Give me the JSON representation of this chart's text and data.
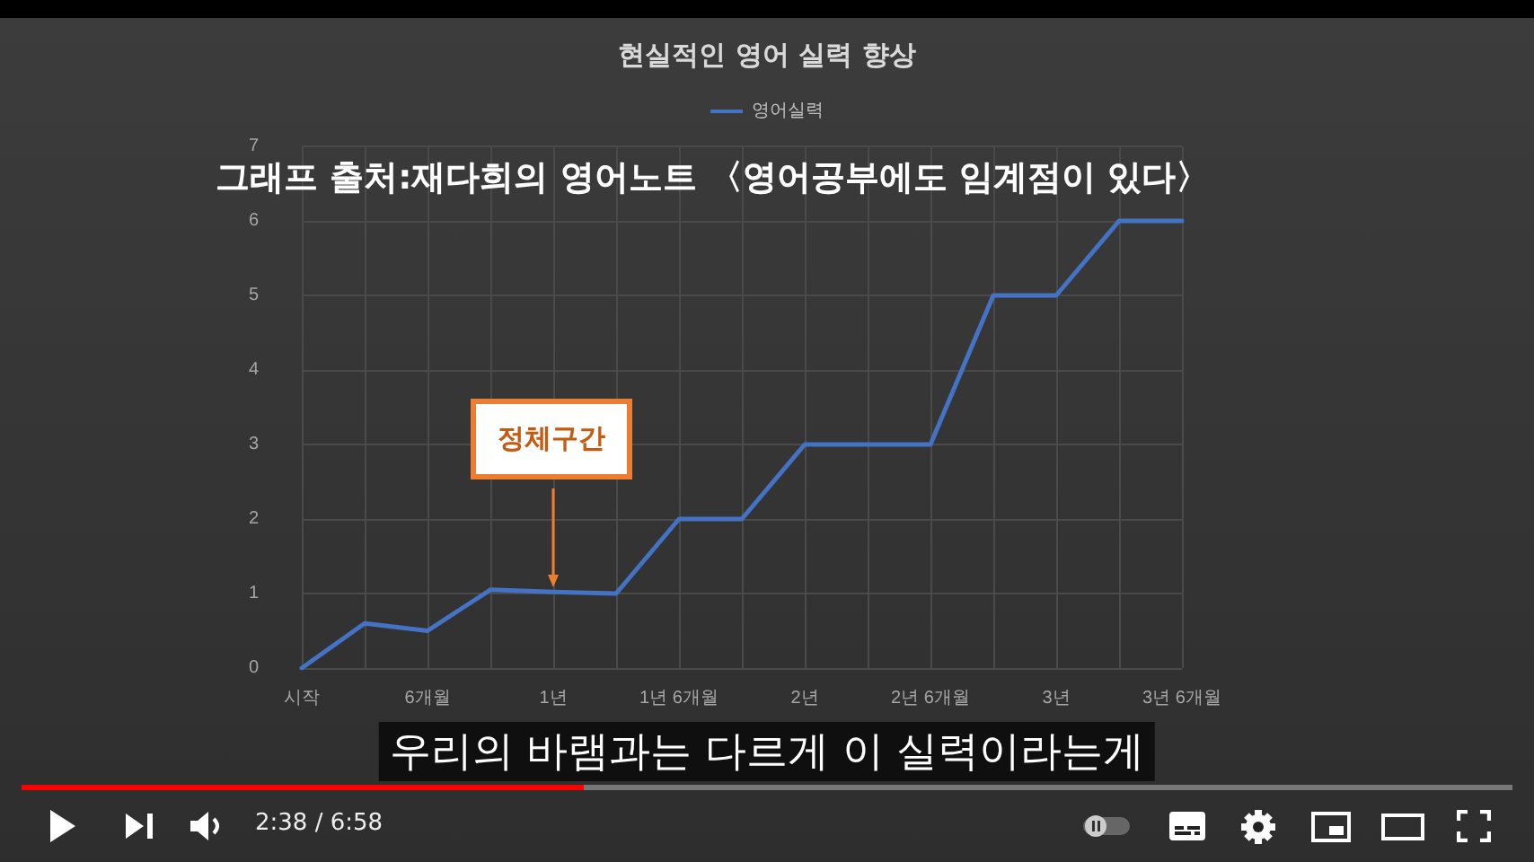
{
  "chart_data": {
    "type": "line",
    "title": "현실적인 영어 실력 향상",
    "categories": [
      "시작",
      null,
      "6개월",
      null,
      "1년",
      null,
      "1년 6개월",
      null,
      "2년",
      null,
      "2년 6개월",
      null,
      "3년",
      null,
      "3년 6개월"
    ],
    "series": [
      {
        "name": "영어실력",
        "color": "#4472c4",
        "values": [
          0,
          0.6,
          0.5,
          1.05,
          1.02,
          1,
          2,
          2,
          3,
          3,
          3,
          5,
          5,
          6,
          6
        ]
      }
    ],
    "ylim": [
      0,
      7
    ],
    "yticks": [
      0,
      1,
      2,
      3,
      4,
      5,
      6,
      7
    ],
    "grid": true,
    "legend": "top",
    "marker": "none",
    "line_style": "solid",
    "annotations": [
      "그래프 출처:재다희의 영어노트 〈영어공부에도 임계점이 있다〉",
      {
        "text": "정체구간",
        "x": "1년",
        "y": 1.02
      },
      "우리의 바램과는 다르게 이 실력이라는게",
      "2:38 / 6:58"
    ]
  }
}
